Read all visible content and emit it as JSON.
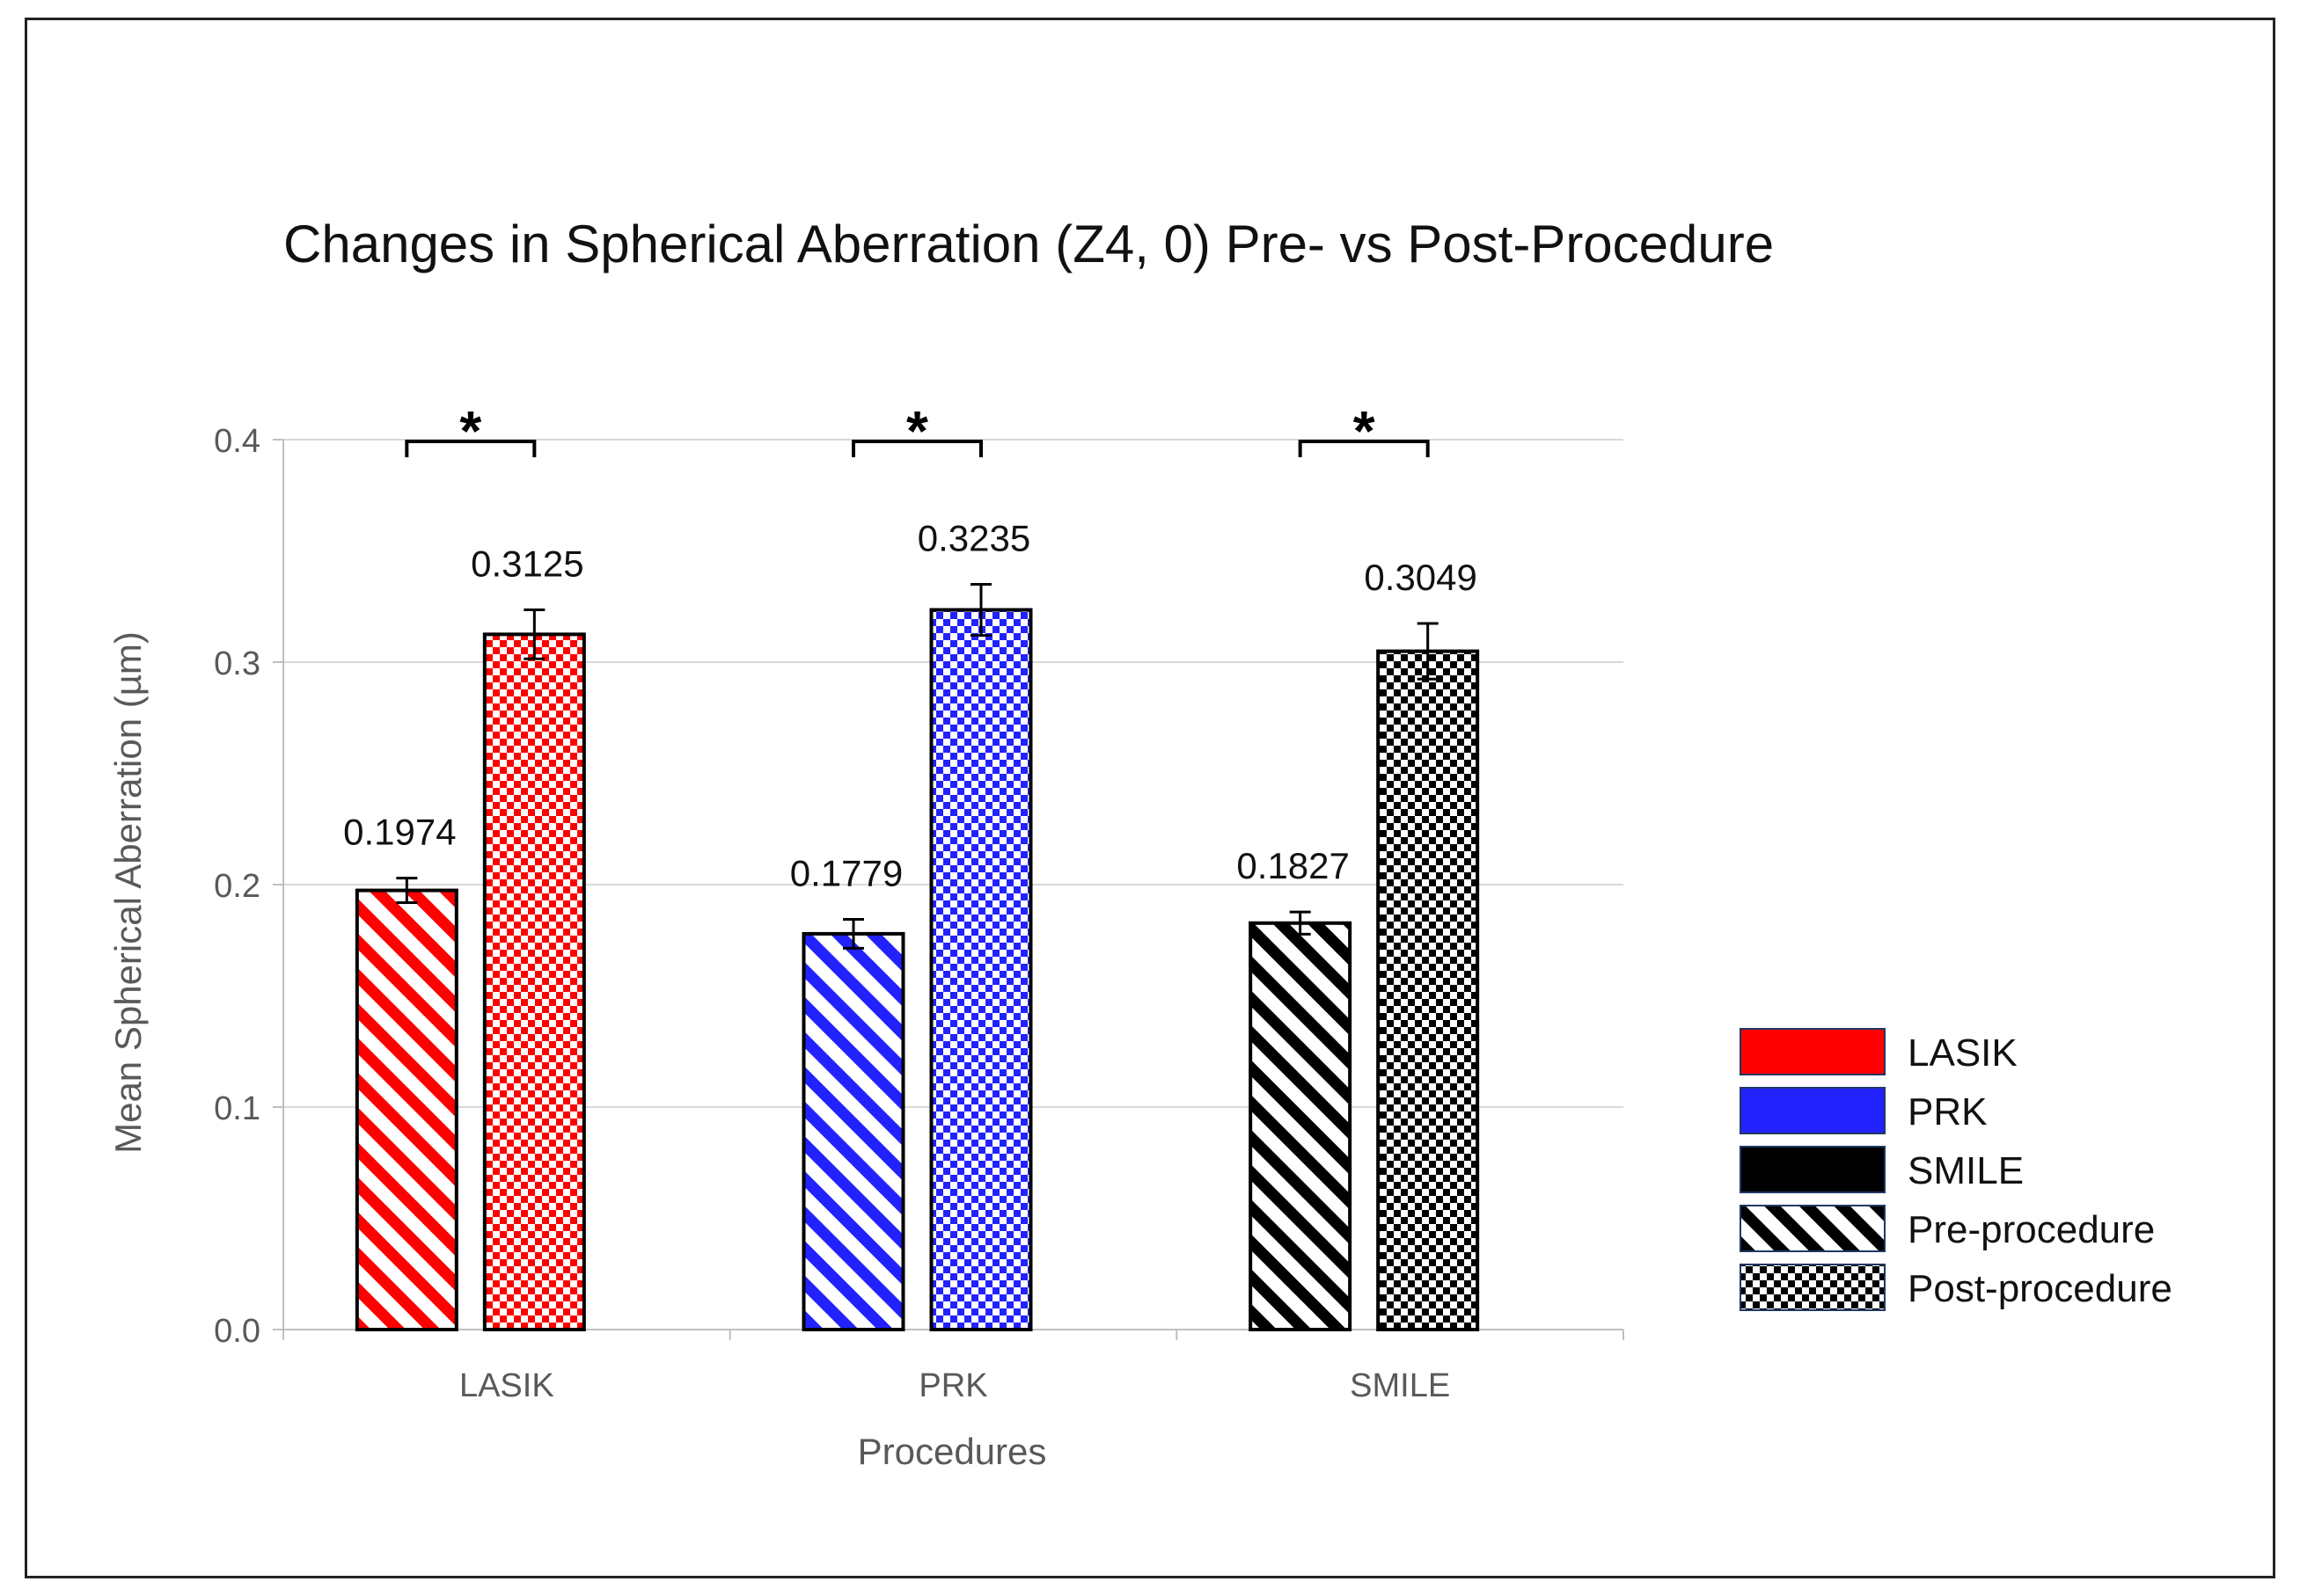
{
  "chart_data": {
    "type": "bar",
    "title": "Changes in Spherical Aberration (Z4, 0)  Pre- vs Post-Procedure",
    "xlabel": "Procedures",
    "ylabel": "Mean Spherical Aberration (µm)",
    "ylim": [
      0,
      0.4
    ],
    "yticks": [
      "0.0",
      "0.1",
      "0.2",
      "0.3",
      "0.4"
    ],
    "grid": true,
    "legend_position": "right",
    "categories": [
      "LASIK",
      "PRK",
      "SMILE"
    ],
    "series": [
      {
        "name": "Pre-procedure",
        "pattern": "diagonal-stripes",
        "values": [
          0.1974,
          0.1779,
          0.1827
        ],
        "errors": [
          0.0055,
          0.0065,
          0.005
        ],
        "labels": [
          "0.1974",
          "0.1779",
          "0.1827"
        ]
      },
      {
        "name": "Post-procedure",
        "pattern": "checkerboard",
        "values": [
          0.3125,
          0.3235,
          0.3049
        ],
        "errors": [
          0.011,
          0.0115,
          0.0125
        ],
        "labels": [
          "0.3125",
          "0.3235",
          "0.3049"
        ]
      }
    ],
    "category_colors": {
      "LASIK": "#ff0000",
      "PRK": "#2222ff",
      "SMILE": "#000000"
    },
    "significance_marker": "*",
    "significance": [
      "*",
      "*",
      "*"
    ],
    "legend": [
      {
        "label": "LASIK",
        "color": "#ff0000",
        "fill": "solid"
      },
      {
        "label": "PRK",
        "color": "#2222ff",
        "fill": "solid"
      },
      {
        "label": "SMILE",
        "color": "#000000",
        "fill": "solid"
      },
      {
        "label": "Pre-procedure",
        "color": "#000000",
        "fill": "diagonal-stripes"
      },
      {
        "label": "Post-procedure",
        "color": "#000000",
        "fill": "checkerboard"
      }
    ]
  }
}
